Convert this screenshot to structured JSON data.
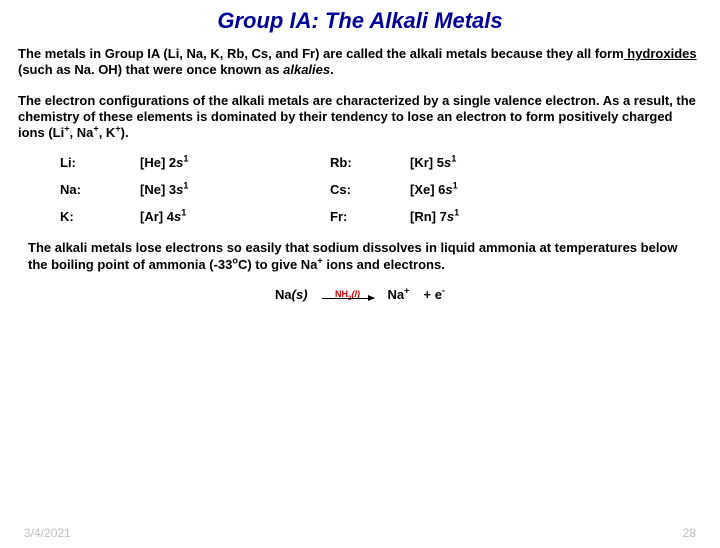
{
  "title": "Group IA: The Alkali Metals",
  "para1": {
    "pre": "The metals in Group IA (Li, Na, K, Rb, Cs, and Fr) are called the alkali metals because they all form",
    "underlined": " hydroxides",
    "mid": " (such as Na. OH) that were once known as ",
    "italic": "alkalies",
    "post": "."
  },
  "para2": {
    "pre": "The electron configurations of the alkali metals are characterized by a single valence electron. As a result, the chemistry of these elements is dominated by their tendency to lose an electron to form positively charged ions (Li",
    "sup1": "+",
    "mid1": ", Na",
    "sup2": "+",
    "mid2": ", K",
    "sup3": "+",
    "post": ")."
  },
  "configs": [
    {
      "el": "Li:",
      "core": "[He]",
      "n": "2",
      "exp": "1"
    },
    {
      "el": "Rb:",
      "core": "[Kr]",
      "n": "5",
      "exp": "1"
    },
    {
      "el": "Na:",
      "core": "[Ne]",
      "n": "3",
      "exp": "1"
    },
    {
      "el": "Cs:",
      "core": "[Xe]",
      "n": "6",
      "exp": "1"
    },
    {
      "el": "K:",
      "core": "[Ar]",
      "n": "4",
      "exp": "1"
    },
    {
      "el": "Fr:",
      "core": "[Rn]",
      "n": "7",
      "exp": "1"
    }
  ],
  "para3": {
    "pre": "The alkali metals lose electrons so easily that sodium dissolves in liquid ammonia at temperatures below the boiling point of ammonia (-33",
    "sup": "o",
    "mid": "C) to give Na",
    "sup2": "+",
    "post": " ions and electrons."
  },
  "reaction": {
    "lhs_el": "Na",
    "lhs_state": "(s)",
    "over_pre": "NH",
    "over_sub": "3",
    "over_state": "(l)",
    "rhs1_el": "Na",
    "rhs1_sup": "+",
    "rhs2_pre": "+ e",
    "rhs2_sup": "-"
  },
  "footer": {
    "date": "3/4/2021",
    "page": "28"
  }
}
